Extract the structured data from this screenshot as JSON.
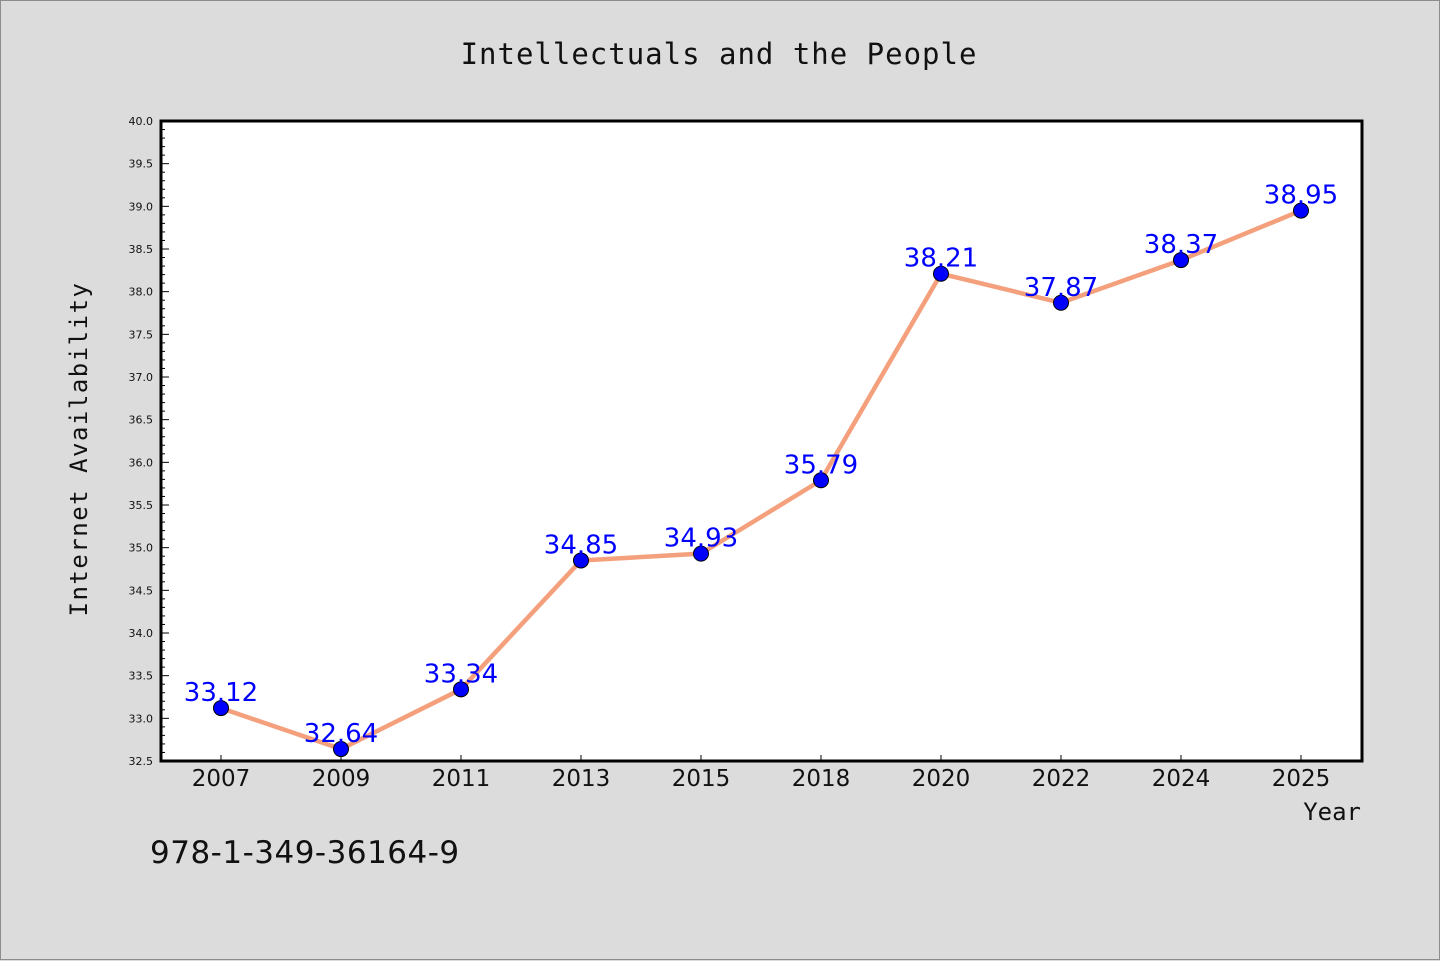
{
  "footer": {
    "isbn": "978-1-349-36164-9"
  },
  "chart_data": {
    "type": "line",
    "title": "Intellectuals and the People",
    "xlabel": "Year",
    "ylabel": "Internet Availability",
    "categories": [
      "2007",
      "2009",
      "2011",
      "2013",
      "2015",
      "2018",
      "2020",
      "2022",
      "2024",
      "2025"
    ],
    "series": [
      {
        "values": [
          33.12,
          32.64,
          33.34,
          34.85,
          34.93,
          35.79,
          38.21,
          37.87,
          38.37,
          38.95
        ],
        "line_color": "#f4a07c",
        "marker_color": "#0000ff",
        "data_labels": [
          "33.12",
          "32.64",
          "33.34",
          "34.85",
          "34.93",
          "35.79",
          "38.21",
          "37.87",
          "38.37",
          "38.95"
        ]
      }
    ],
    "ylim": [
      32.5,
      40.0
    ],
    "yticks": [
      "32.5",
      "33.0",
      "33.5",
      "34.0",
      "34.5",
      "35.0",
      "35.5",
      "36.0",
      "36.5",
      "37.0",
      "37.5",
      "38.0",
      "38.5",
      "39.0",
      "39.5",
      "40.0"
    ],
    "grid": false,
    "legend": "none",
    "label_color": "#0000ff",
    "background": "#dcdcdc",
    "plot_background": "#ffffff"
  }
}
